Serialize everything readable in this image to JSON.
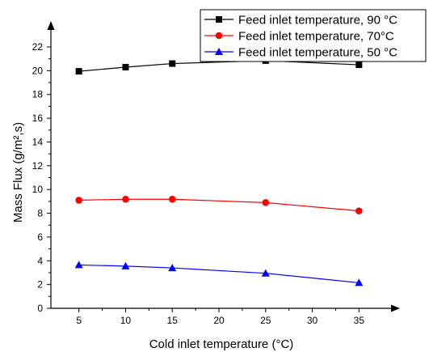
{
  "chart_data": {
    "type": "line",
    "xlabel": "Cold inlet temperature (°C)",
    "ylabel": "Mass Flux (g/m²,s)",
    "xlim": [
      2,
      38
    ],
    "ylim": [
      0,
      23.5
    ],
    "xticks": [
      5,
      10,
      15,
      20,
      25,
      30,
      35
    ],
    "yticks": [
      0,
      2,
      4,
      6,
      8,
      10,
      12,
      14,
      16,
      18,
      20,
      22
    ],
    "grid": false,
    "legend_position": "top-right",
    "series": [
      {
        "name": "Feed inlet temperature, 90 °C",
        "color": "#000000",
        "marker": "square",
        "x": [
          5,
          10,
          15,
          25,
          35
        ],
        "y": [
          19.95,
          20.3,
          20.6,
          20.85,
          20.5
        ]
      },
      {
        "name": "Feed inlet temperature, 70°C",
        "color": "#ff0000",
        "marker": "circle",
        "x": [
          5,
          10,
          15,
          25,
          35
        ],
        "y": [
          9.1,
          9.18,
          9.18,
          8.9,
          8.2
        ]
      },
      {
        "name": "Feed inlet temperature, 50 °C",
        "color": "#0000ff",
        "marker": "triangle",
        "x": [
          5,
          10,
          15,
          25,
          35
        ],
        "y": [
          3.65,
          3.55,
          3.4,
          2.95,
          2.15
        ]
      }
    ]
  }
}
